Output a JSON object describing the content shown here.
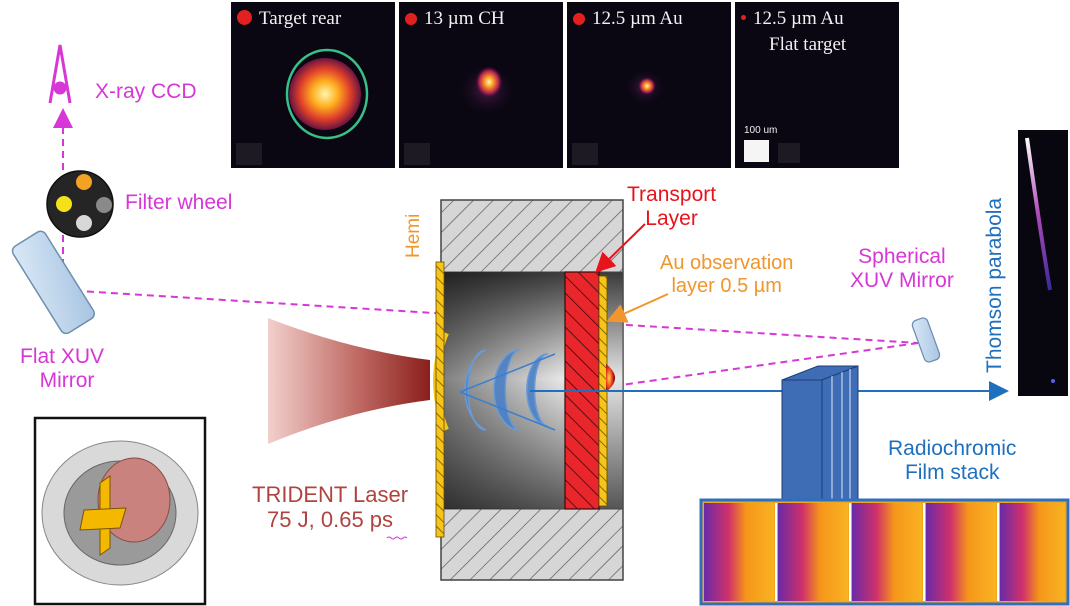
{
  "panels": [
    {
      "title": "Target rear"
    },
    {
      "title": "13 µm CH"
    },
    {
      "title": "12.5 µm Au"
    },
    {
      "title": "12.5 µm Au",
      "subtitle": "Flat target",
      "scale_label": "100 um"
    }
  ],
  "labels": {
    "xray_ccd": "X-ray CCD",
    "filter_wheel": "Filter wheel",
    "flat_mirror_1": "Flat XUV",
    "flat_mirror_2": "Mirror",
    "hemi": "Hemi",
    "transport_1": "Transport",
    "transport_2": "Layer",
    "au_obs_1": "Au observation",
    "au_obs_2": "layer 0.5 µm",
    "spherical_1": "Spherical",
    "spherical_2": "XUV Mirror",
    "thomson": "Thomson parabola",
    "laser_1": "TRIDENT Laser",
    "laser_2": "75 J, 0.65 ps",
    "rcf_1": "Radiochromic",
    "rcf_2": "Film stack"
  },
  "colors": {
    "magenta": "#d637d6",
    "orange": "#f0962c",
    "red": "#e8141c",
    "blue": "#1f6fbf",
    "laser": "#b0433f"
  }
}
